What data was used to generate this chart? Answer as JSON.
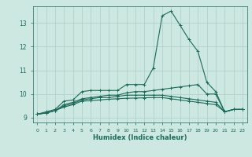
{
  "xlabel": "Humidex (Indice chaleur)",
  "bg_color": "#cce8e0",
  "grid_color": "#aacfc8",
  "line_color": "#1a6b5a",
  "xlim": [
    -0.5,
    23.5
  ],
  "ylim": [
    8.8,
    13.7
  ],
  "yticks": [
    9,
    10,
    11,
    12,
    13
  ],
  "xticks": [
    0,
    1,
    2,
    3,
    4,
    5,
    6,
    7,
    8,
    9,
    10,
    11,
    12,
    13,
    14,
    15,
    16,
    17,
    18,
    19,
    20,
    21,
    22,
    23
  ],
  "series": [
    {
      "x": [
        0,
        1,
        2,
        3,
        4,
        5,
        6,
        7,
        8,
        9,
        10,
        11,
        12,
        13,
        14,
        15,
        16,
        17,
        18,
        19,
        20,
        21,
        22,
        23
      ],
      "y": [
        9.15,
        9.25,
        9.35,
        9.7,
        9.75,
        10.1,
        10.15,
        10.15,
        10.15,
        10.15,
        10.4,
        10.4,
        10.4,
        11.1,
        13.3,
        13.5,
        12.9,
        12.3,
        11.8,
        10.5,
        10.1,
        9.25,
        9.35,
        9.35
      ]
    },
    {
      "x": [
        0,
        1,
        2,
        3,
        4,
        5,
        6,
        7,
        8,
        9,
        10,
        11,
        12,
        13,
        14,
        15,
        16,
        17,
        18,
        19,
        20,
        21,
        22,
        23
      ],
      "y": [
        9.15,
        9.2,
        9.3,
        9.55,
        9.65,
        9.8,
        9.85,
        9.9,
        9.95,
        9.95,
        10.05,
        10.1,
        10.1,
        10.15,
        10.2,
        10.25,
        10.3,
        10.35,
        10.4,
        10.0,
        10.0,
        9.25,
        9.35,
        9.35
      ]
    },
    {
      "x": [
        0,
        1,
        2,
        3,
        4,
        5,
        6,
        7,
        8,
        9,
        10,
        11,
        12,
        13,
        14,
        15,
        16,
        17,
        18,
        19,
        20,
        21,
        22,
        23
      ],
      "y": [
        9.15,
        9.2,
        9.3,
        9.5,
        9.6,
        9.75,
        9.8,
        9.85,
        9.85,
        9.9,
        9.95,
        9.95,
        9.95,
        9.95,
        9.95,
        9.9,
        9.85,
        9.8,
        9.75,
        9.7,
        9.65,
        9.25,
        9.35,
        9.35
      ]
    },
    {
      "x": [
        0,
        1,
        2,
        3,
        4,
        5,
        6,
        7,
        8,
        9,
        10,
        11,
        12,
        13,
        14,
        15,
        16,
        17,
        18,
        19,
        20,
        21,
        22,
        23
      ],
      "y": [
        9.15,
        9.2,
        9.3,
        9.45,
        9.55,
        9.7,
        9.72,
        9.75,
        9.78,
        9.8,
        9.82,
        9.83,
        9.84,
        9.85,
        9.85,
        9.8,
        9.75,
        9.7,
        9.65,
        9.6,
        9.55,
        9.25,
        9.35,
        9.35
      ]
    }
  ]
}
